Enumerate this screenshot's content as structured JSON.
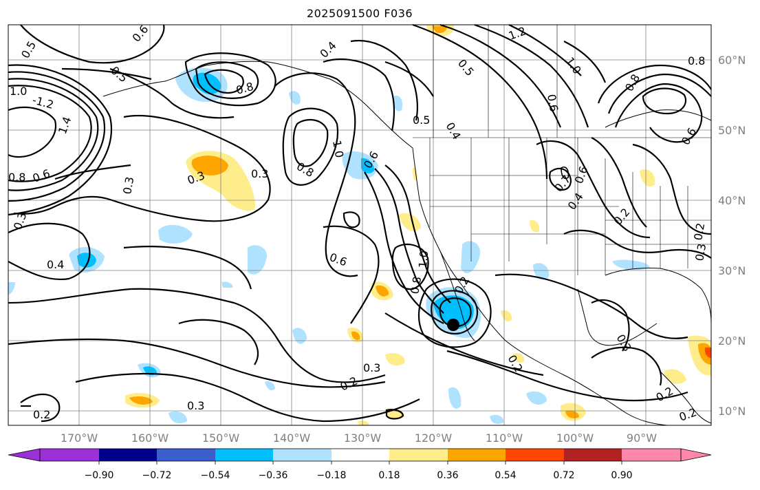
{
  "title": "2025091500 F036",
  "map": {
    "lon_labels": [
      "170°W",
      "160°W",
      "150°W",
      "140°W",
      "130°W",
      "120°W",
      "110°W",
      "100°W",
      "90°W"
    ],
    "lat_labels": [
      "60°N",
      "50°N",
      "40°N",
      "30°N",
      "20°N",
      "10°N"
    ],
    "contour_labels": [
      "0.5",
      "0.6",
      "0.5",
      "1.0",
      "-1.2",
      "1.4",
      "0.8",
      "0.6",
      "0.3",
      "0.3",
      "0.4",
      "0.3",
      "0.8",
      "0.3",
      "0.4",
      "1.0",
      "0.8",
      "0.5",
      "0.4",
      "0.5",
      "1.2",
      "1.0",
      "0.6",
      "0.8",
      "0.8",
      "0.6",
      "0.6",
      "0.7",
      "0.6",
      "0.4",
      "0.2",
      "1.0",
      "0.6",
      "0.8",
      "0.2",
      "0.2",
      "0.3",
      "0.2",
      "0.3",
      "0.3",
      "0.2",
      "0.2",
      "0.2",
      "0.3",
      "0.2"
    ],
    "storm_marker": "storm-center"
  },
  "colorbar": {
    "ticks": [
      "−0.90",
      "−0.72",
      "−0.54",
      "−0.36",
      "−0.18",
      "0.18",
      "0.36",
      "0.54",
      "0.72",
      "0.90"
    ],
    "colors": [
      "#9b30d9",
      "#00008b",
      "#3a5fcd",
      "#00bfff",
      "#aee2ff",
      "#ffffff",
      "#ffec8b",
      "#ffa500",
      "#ff4500",
      "#b22222",
      "#ff88aa"
    ]
  },
  "colors": {
    "light_blue": "#aee2ff",
    "blue": "#00bfff",
    "light_yellow": "#ffec8b",
    "orange": "#ffa500",
    "red_orange": "#ff4500",
    "grid": "#808080"
  }
}
